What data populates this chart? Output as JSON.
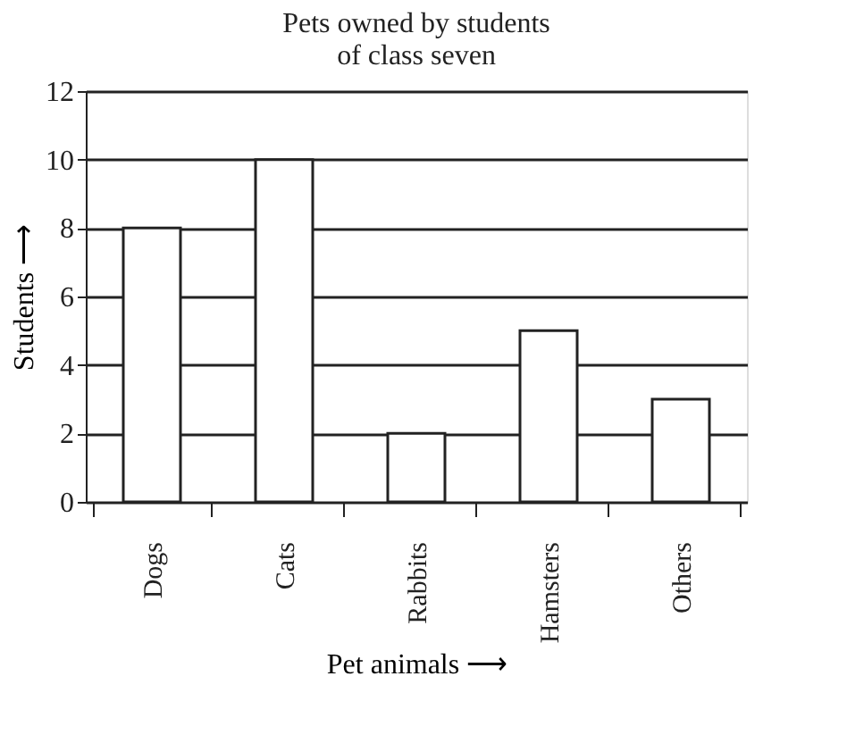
{
  "chart_data": {
    "type": "bar",
    "title": "Pets owned by students\nof class seven",
    "xlabel": "Pet animals ⟶",
    "ylabel": "Students ⟶",
    "categories": [
      "Dogs",
      "Cats",
      "Rabbits",
      "Hamsters",
      "Others"
    ],
    "values": [
      8,
      10,
      2,
      5,
      3
    ],
    "color": "#ffffff",
    "ylim": [
      0,
      12
    ],
    "yticks": [
      0,
      2,
      4,
      6,
      8,
      10,
      12
    ],
    "grid": "y"
  }
}
